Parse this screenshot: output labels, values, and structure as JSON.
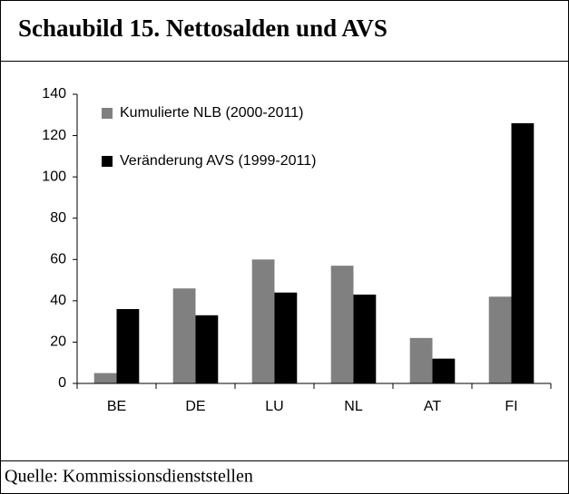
{
  "chart_data": {
    "type": "bar",
    "title": "Schaubild 15. Nettosalden und AVS",
    "source": "Quelle: Kommissionsdienststellen",
    "categories": [
      "BE",
      "DE",
      "LU",
      "NL",
      "AT",
      "FI"
    ],
    "series": [
      {
        "name": "Kumulierte NLB (2000-2011)",
        "color": "#808080",
        "values": [
          5,
          46,
          60,
          57,
          22,
          42
        ]
      },
      {
        "name": "Veränderung AVS (1999-2011)",
        "color": "#000000",
        "values": [
          36,
          33,
          44,
          43,
          12,
          126
        ]
      }
    ],
    "ylim": [
      0,
      140
    ],
    "yticks": [
      0,
      20,
      40,
      60,
      80,
      100,
      120,
      140
    ],
    "grid": false,
    "legend": "top-left"
  }
}
